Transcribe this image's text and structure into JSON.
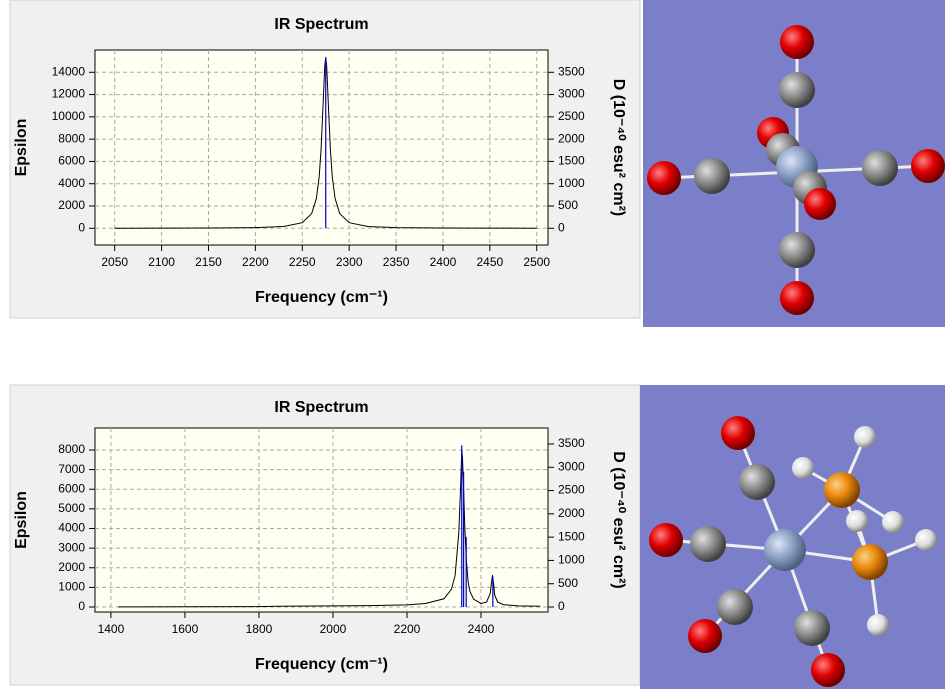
{
  "chart_data": [
    {
      "type": "line",
      "title": "IR Spectrum",
      "x_label": "Frequency (cm⁻¹)",
      "y_label": "Epsilon",
      "y2_label": "D (10⁻⁴⁰ esu² cm²)",
      "xlim": [
        2029,
        2512
      ],
      "xticks": [
        2050,
        2100,
        2150,
        2200,
        2250,
        2300,
        2350,
        2400,
        2450,
        2500
      ],
      "ylim": [
        -1500,
        16000
      ],
      "yticks": [
        0,
        2000,
        4000,
        6000,
        8000,
        10000,
        12000,
        14000
      ],
      "y2lim": [
        -375,
        4000
      ],
      "y2ticks": [
        0,
        500,
        1000,
        1500,
        2000,
        2500,
        3000,
        3500
      ],
      "grid": true,
      "series": [
        {
          "color": "#000000",
          "x": [
            2050,
            2100,
            2150,
            2200,
            2230,
            2250,
            2260,
            2265,
            2268,
            2270,
            2272,
            2274,
            2275,
            2276,
            2278,
            2280,
            2282,
            2285,
            2290,
            2300,
            2320,
            2350,
            2400,
            2450,
            2500
          ],
          "values": [
            6,
            11,
            21,
            57,
            158,
            502,
            1316,
            2670,
            4608,
            7018,
            10737,
            14610,
            15300,
            14610,
            10737,
            7018,
            4608,
            2670,
            1316,
            502,
            158,
            57,
            21,
            11,
            6
          ]
        },
        {
          "color": "#0000cc",
          "style": "stick",
          "axis": "y2",
          "x": [
            2275
          ],
          "values": [
            3840
          ]
        }
      ]
    },
    {
      "type": "line",
      "title": "IR Spectrum",
      "x_label": "Frequency (cm⁻¹)",
      "y_label": "Epsilon",
      "y2_label": "D (10⁻⁴⁰ esu² cm²)",
      "xlim": [
        1357,
        2581
      ],
      "xticks": [
        1400,
        1600,
        1800,
        2000,
        2200,
        2400
      ],
      "ylim": [
        -255,
        9120
      ],
      "yticks": [
        0,
        1000,
        2000,
        3000,
        4000,
        5000,
        6000,
        7000,
        8000
      ],
      "y2lim": [
        -107,
        3843
      ],
      "y2ticks": [
        0,
        500,
        1000,
        1500,
        2000,
        2500,
        3000,
        3500
      ],
      "grid": true,
      "series": [
        {
          "color": "#000000",
          "x": [
            1420,
            1600,
            1800,
            1850,
            1900,
            2000,
            2100,
            2200,
            2250,
            2300,
            2320,
            2330,
            2340,
            2345,
            2348,
            2350,
            2353,
            2356,
            2360,
            2365,
            2370,
            2380,
            2400,
            2415,
            2425,
            2428,
            2431,
            2434,
            2437,
            2445,
            2460,
            2500,
            2560
          ],
          "values": [
            5,
            10,
            20,
            40,
            45,
            55,
            70,
            110,
            180,
            420,
            900,
            1600,
            3800,
            6200,
            8000,
            7600,
            6000,
            4200,
            2500,
            1300,
            800,
            400,
            180,
            250,
            700,
            1200,
            1620,
            1200,
            600,
            250,
            120,
            60,
            40
          ]
        },
        {
          "color": "#0000cc",
          "style": "stick",
          "axis": "y2",
          "x": [
            2348,
            2353,
            2360,
            2432
          ],
          "values": [
            3470,
            2900,
            1500,
            650
          ]
        }
      ]
    }
  ]
}
